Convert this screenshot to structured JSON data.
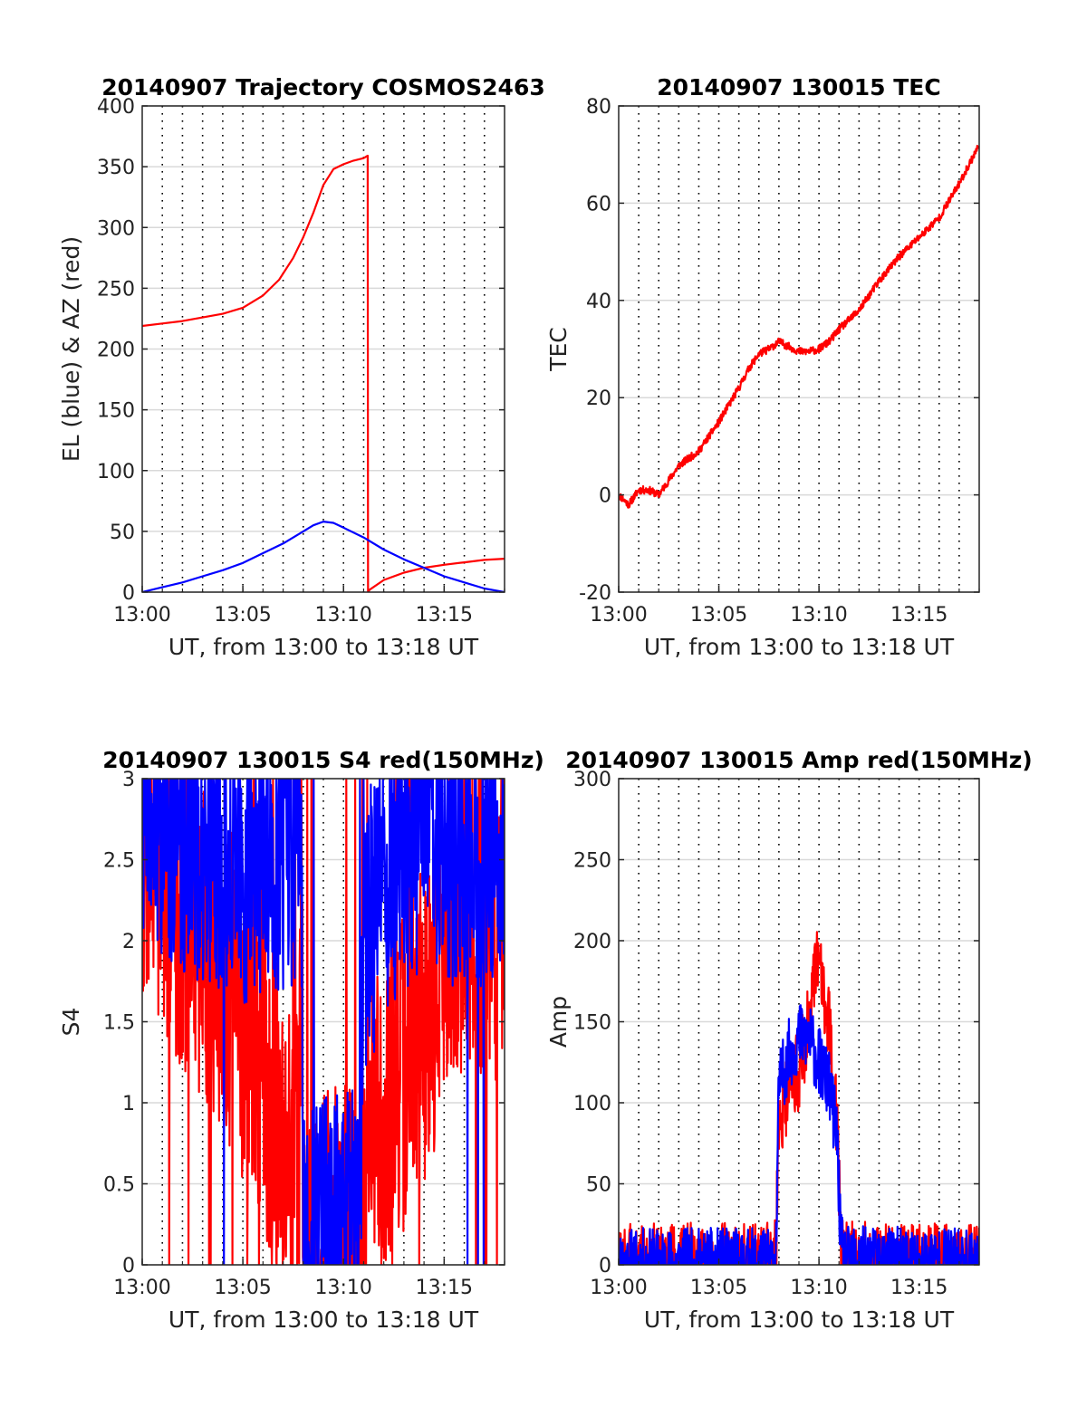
{
  "figure_title": "",
  "chart_data": [
    {
      "type": "line",
      "title": "20140907 Trajectory COSMOS2463",
      "xlabel": "UT, from 13:00 to 13:18 UT",
      "ylabel": "EL (blue) & AZ (red)",
      "xlim": [
        0,
        18
      ],
      "ylim": [
        0,
        400
      ],
      "xticks": [
        0,
        5,
        10,
        15
      ],
      "xtick_labels": [
        "13:00",
        "13:05",
        "13:10",
        "13:15"
      ],
      "yticks": [
        0,
        50,
        100,
        150,
        200,
        250,
        300,
        350,
        400
      ],
      "grid": true,
      "vertical_dotted_lines_every_min": 1,
      "series": [
        {
          "color": "#ff0000",
          "kind": "az",
          "x": [
            0,
            1,
            2,
            3,
            4,
            5,
            6,
            6.8,
            7.5,
            8,
            8.5,
            9,
            9.5,
            10,
            10.5,
            11,
            11.2,
            11.22,
            11.3,
            12,
            13,
            14,
            15,
            16,
            17,
            18
          ],
          "y": [
            219,
            221,
            223,
            226,
            229,
            234,
            244,
            257,
            275,
            292,
            312,
            335,
            348,
            352,
            355,
            357,
            359,
            0,
            2,
            10,
            16,
            20,
            22.5,
            24.5,
            26.5,
            27.5
          ]
        },
        {
          "color": "#0000ff",
          "kind": "el",
          "x": [
            0,
            1,
            2,
            3,
            4,
            5,
            6,
            7,
            8,
            8.5,
            9,
            9.5,
            10,
            11,
            12,
            13,
            14,
            15,
            16,
            17,
            18
          ],
          "y": [
            0,
            4,
            8,
            13,
            18,
            24,
            32,
            40,
            50,
            55,
            58,
            57,
            53,
            45,
            35,
            27,
            20,
            13,
            8,
            3,
            0
          ]
        }
      ]
    },
    {
      "type": "line",
      "title": "20140907 130015 TEC",
      "xlabel": "UT, from 13:00 to 13:18 UT",
      "ylabel": "TEC",
      "xlim": [
        0,
        18
      ],
      "ylim": [
        -20,
        80
      ],
      "xticks": [
        0,
        5,
        10,
        15
      ],
      "xtick_labels": [
        "13:00",
        "13:05",
        "13:10",
        "13:15"
      ],
      "yticks": [
        -20,
        0,
        20,
        40,
        60,
        80
      ],
      "grid": true,
      "vertical_dotted_lines_every_min": 1,
      "series": [
        {
          "color": "#ff0000",
          "noise": 0.8,
          "x": [
            0,
            0.5,
            1,
            1.5,
            2,
            3,
            4,
            5,
            6,
            6.5,
            7,
            7.5,
            8,
            8.5,
            9,
            9.5,
            10,
            10.5,
            11,
            12,
            13,
            14,
            15,
            16,
            17,
            18
          ],
          "y": [
            0,
            -2,
            1,
            1,
            0,
            6,
            9,
            15,
            22,
            26,
            29,
            30,
            31.5,
            30.5,
            29.5,
            29.5,
            30,
            31.5,
            34,
            38,
            44,
            49,
            53,
            57,
            64,
            72
          ]
        }
      ]
    },
    {
      "type": "line",
      "title": "20140907 130015 S4 red(150MHz)",
      "xlabel": "UT, from 13:00 to 13:18 UT",
      "ylabel": "S4",
      "xlim": [
        0,
        18
      ],
      "ylim": [
        0,
        3
      ],
      "xticks": [
        0,
        5,
        10,
        15
      ],
      "xtick_labels": [
        "13:00",
        "13:05",
        "13:10",
        "13:15"
      ],
      "yticks": [
        0,
        0.5,
        1,
        1.5,
        2,
        2.5,
        3
      ],
      "ytick_labels": [
        "0",
        "0.5",
        "1",
        "1.5",
        "2",
        "2.5",
        "3"
      ],
      "grid": true,
      "vertical_dotted_lines_every_min": 1,
      "series": [
        {
          "color": "#ff0000",
          "noise": 1.0,
          "spike_rate": 0.05,
          "seed": 7,
          "x": [
            0,
            1,
            2,
            3,
            4,
            5,
            5.8,
            6.5,
            7,
            7.4,
            7.8,
            7.9,
            8,
            9,
            10,
            10.8,
            11,
            12,
            13,
            14,
            15,
            16,
            17,
            18
          ],
          "y": [
            2.6,
            2.4,
            2.2,
            2.0,
            1.8,
            1.5,
            1.2,
            1.0,
            0.8,
            0.7,
            0.6,
            2.9,
            0.12,
            0.1,
            0.12,
            0.15,
            0.8,
            0.95,
            1.2,
            1.5,
            1.9,
            2.1,
            2.2,
            2.0
          ]
        },
        {
          "color": "#0000ff",
          "noise": 0.9,
          "spike_rate": 0.02,
          "seed": 19,
          "x": [
            0,
            1,
            2,
            3,
            4,
            5,
            6,
            6.8,
            7.3,
            7.8,
            7.9,
            8,
            9,
            10,
            10.8,
            11,
            12,
            13,
            14,
            15,
            16,
            17,
            18
          ],
          "y": [
            2.9,
            2.8,
            2.7,
            2.6,
            2.6,
            2.5,
            2.5,
            2.5,
            2.6,
            2.6,
            2.9,
            0.15,
            0.14,
            0.18,
            0.22,
            2.0,
            2.4,
            2.6,
            2.7,
            2.6,
            2.6,
            2.6,
            2.6
          ]
        }
      ]
    },
    {
      "type": "line",
      "title": "20140907 130015 Amp red(150MHz)",
      "xlabel": "UT, from 13:00 to 13:18 UT",
      "ylabel": "Amp",
      "xlim": [
        0,
        18
      ],
      "ylim": [
        0,
        300
      ],
      "xticks": [
        0,
        5,
        10,
        15
      ],
      "xtick_labels": [
        "13:00",
        "13:05",
        "13:10",
        "13:15"
      ],
      "yticks": [
        0,
        50,
        100,
        150,
        200,
        250,
        300
      ],
      "grid": true,
      "vertical_dotted_lines_every_min": 1,
      "series": [
        {
          "color": "#ff0000",
          "noise": 25,
          "seed": 3,
          "x": [
            0,
            7.7,
            7.85,
            8,
            8.5,
            9,
            9.5,
            10,
            10.5,
            10.9,
            11.1,
            11.3,
            18
          ],
          "y": [
            1,
            1,
            5,
            90,
            110,
            120,
            150,
            190,
            150,
            90,
            10,
            2,
            1
          ]
        },
        {
          "color": "#0000ff",
          "noise": 22,
          "seed": 11,
          "x": [
            0,
            7.7,
            7.85,
            8,
            8.5,
            9,
            9.5,
            10,
            10.5,
            10.9,
            11.1,
            11.3,
            18
          ],
          "y": [
            1,
            1,
            5,
            110,
            130,
            140,
            140,
            125,
            110,
            80,
            10,
            2,
            1
          ]
        }
      ]
    }
  ]
}
